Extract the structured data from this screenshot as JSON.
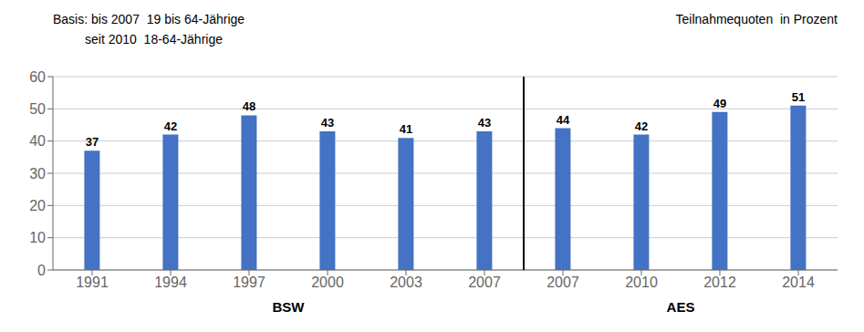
{
  "chart_data": {
    "type": "bar",
    "categories": [
      "1991",
      "1994",
      "1997",
      "2000",
      "2003",
      "2007",
      "2007",
      "2010",
      "2012",
      "2014"
    ],
    "values": [
      37,
      42,
      48,
      43,
      41,
      43,
      44,
      42,
      49,
      51
    ],
    "color": "#4472C4",
    "ylim": [
      0,
      60
    ],
    "yticks": [
      0,
      10,
      20,
      30,
      40,
      50,
      60
    ],
    "grid": true,
    "data_labels": true,
    "groups": [
      {
        "name": "BSW",
        "size": 6
      },
      {
        "name": "AES",
        "size": 4
      }
    ],
    "annotations": [
      {
        "text": "Basis: bis 2007  19 bis 64-Jährige",
        "align": "left"
      },
      {
        "text": "         seit 2010  18-64-Jährige",
        "align": "left"
      },
      {
        "text": "Teilnahmequoten  in Prozent",
        "align": "right"
      }
    ]
  }
}
